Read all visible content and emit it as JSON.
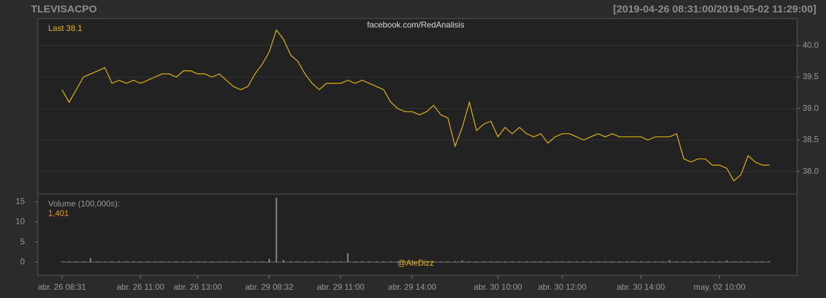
{
  "chart_data": [
    {
      "type": "line",
      "title": "TLEVISACPO",
      "subtitle": "[2019-04-26 08:31:00/2019-05-02 11:29:00]",
      "last_label": "Last 38.1",
      "watermark": "facebook.com/RedAnalisis",
      "categories": [
        "abr. 26 08:31",
        null,
        null,
        null,
        null,
        null,
        null,
        null,
        null,
        null,
        null,
        "abr. 26 11:00",
        null,
        null,
        null,
        null,
        null,
        null,
        null,
        "abr. 26 13:00",
        null,
        null,
        null,
        null,
        null,
        null,
        null,
        null,
        null,
        "abr. 29 08:32",
        null,
        null,
        null,
        null,
        null,
        null,
        null,
        null,
        null,
        "abr. 29 11:00",
        null,
        null,
        null,
        null,
        null,
        null,
        null,
        null,
        null,
        "abr. 29 14:00",
        null,
        null,
        null,
        null,
        null,
        null,
        null,
        null,
        null,
        null,
        null,
        "abr. 30 10:00",
        null,
        null,
        null,
        null,
        null,
        null,
        null,
        null,
        "abr. 30 12:00",
        null,
        null,
        null,
        null,
        null,
        null,
        null,
        null,
        null,
        null,
        "abr. 30 14:00",
        null,
        null,
        null,
        null,
        null,
        null,
        null,
        null,
        null,
        null,
        "may. 02 10:00",
        null,
        null,
        null,
        null,
        null,
        null,
        null
      ],
      "values": [
        39.3,
        39.1,
        39.3,
        39.5,
        39.55,
        39.6,
        39.65,
        39.4,
        39.45,
        39.4,
        39.45,
        39.4,
        39.45,
        39.5,
        39.55,
        39.55,
        39.5,
        39.6,
        39.6,
        39.55,
        39.55,
        39.5,
        39.55,
        39.45,
        39.35,
        39.3,
        39.35,
        39.55,
        39.7,
        39.9,
        40.25,
        40.1,
        39.85,
        39.75,
        39.55,
        39.4,
        39.3,
        39.4,
        39.4,
        39.4,
        39.45,
        39.4,
        39.45,
        39.4,
        39.35,
        39.3,
        39.1,
        39.0,
        38.95,
        38.95,
        38.9,
        38.95,
        39.05,
        38.9,
        38.85,
        38.4,
        38.7,
        39.1,
        38.65,
        38.75,
        38.8,
        38.55,
        38.7,
        38.6,
        38.7,
        38.6,
        38.55,
        38.6,
        38.45,
        38.55,
        38.6,
        38.6,
        38.55,
        38.5,
        38.55,
        38.6,
        38.55,
        38.6,
        38.55,
        38.55,
        38.55,
        38.55,
        38.5,
        38.55,
        38.55,
        38.55,
        38.6,
        38.2,
        38.15,
        38.2,
        38.2,
        38.1,
        38.1,
        38.05,
        37.85,
        37.95,
        38.25,
        38.15,
        38.1,
        38.1
      ],
      "color": "#e6b800",
      "ylim": [
        37.64,
        40.43
      ],
      "yticks": [
        {
          "value": 38,
          "label": "38.0"
        },
        38.5,
        {
          "value": 39,
          "label": "39.0"
        },
        39.5,
        {
          "value": 40,
          "label": "40.0"
        }
      ],
      "grid": true
    },
    {
      "type": "bar",
      "label": "Volume (100,000s):",
      "last_label": "1,401",
      "watermark": "@AleDizz",
      "values": [
        0.2,
        0.2,
        0.2,
        0.2,
        1.0,
        0.2,
        0.2,
        0.2,
        0.2,
        0.2,
        0.2,
        0.2,
        0.2,
        0.2,
        0.2,
        0.2,
        0.2,
        0.2,
        0.2,
        0.2,
        0.2,
        0.2,
        0.2,
        0.2,
        0.2,
        0.2,
        0.2,
        0.2,
        0.2,
        0.8,
        16,
        0.5,
        0.2,
        0.2,
        0.2,
        0.2,
        0.2,
        0.2,
        0.2,
        0.2,
        2.2,
        0.2,
        0.2,
        0.2,
        0.2,
        0.2,
        0.2,
        0.2,
        0.2,
        0.2,
        0.2,
        0.2,
        0.2,
        0.2,
        0.2,
        0.2,
        0.4,
        0.2,
        0.2,
        0.2,
        0.2,
        0.2,
        0.2,
        0.2,
        0.2,
        0.2,
        0.2,
        0.2,
        0.2,
        0.2,
        0.2,
        0.2,
        0.2,
        0.2,
        0.2,
        0.2,
        0.2,
        0.2,
        0.2,
        0.2,
        0.2,
        0.2,
        0.2,
        0.2,
        0.2,
        0.5,
        0.2,
        0.2,
        0.2,
        0.2,
        0.2,
        0.2,
        0.2,
        0.4,
        0.2,
        0.2,
        0.2,
        0.2,
        0.2,
        0.2
      ],
      "color": "#8a8a8a",
      "ylim": [
        -3.28,
        16.9
      ],
      "yticks": [
        0,
        5,
        10,
        15
      ]
    }
  ]
}
